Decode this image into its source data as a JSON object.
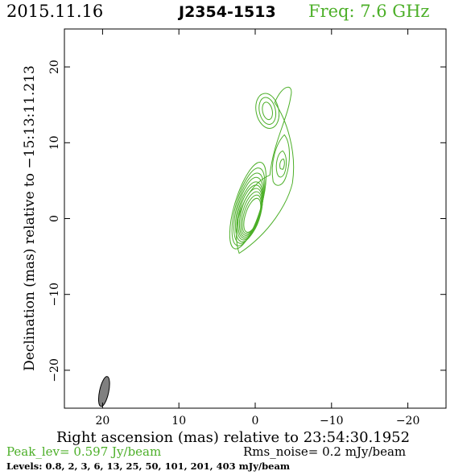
{
  "header": {
    "date": "2015.11.16",
    "source": "J2354-1513",
    "frequency": "Freq: 7.6 GHz"
  },
  "chart_data": {
    "type": "contour",
    "xlabel": "Right ascension (mas) relative to 23:54:30.1952",
    "ylabel": "Declination (mas) relative to −15:13:11.213",
    "xlim": [
      25,
      -25
    ],
    "ylim": [
      -25,
      25
    ],
    "x_ticks": [
      20,
      10,
      0,
      -10,
      -20
    ],
    "x_tick_labels": [
      "20",
      "10",
      "0",
      "−10",
      "−20"
    ],
    "y_ticks": [
      20,
      10,
      0,
      -10,
      -20
    ],
    "y_tick_labels": [
      "20",
      "10",
      "0",
      "−10",
      "−20"
    ],
    "contour_color": "#4caf28",
    "beam_color": "#808080",
    "components": [
      {
        "x": 0.2,
        "y": 0.2
      },
      {
        "x": -3.4,
        "y": 6.8
      },
      {
        "x": -1.6,
        "y": 14.2
      }
    ],
    "levels_mjy": [
      0.8,
      2,
      3,
      6,
      13,
      25,
      50,
      101,
      201,
      403
    ],
    "beam": {
      "x": 19.8,
      "y": -22.8,
      "major_mas": 4.0,
      "minor_mas": 1.2
    }
  },
  "footer": {
    "peak": "Peak_lev=  0.597 Jy/beam",
    "rms": "Rms_noise=  0.2 mJy/beam",
    "levels": "Levels: 0.8,   2,   3,   6,  13,  25,  50, 101, 201, 403 mJy/beam"
  }
}
